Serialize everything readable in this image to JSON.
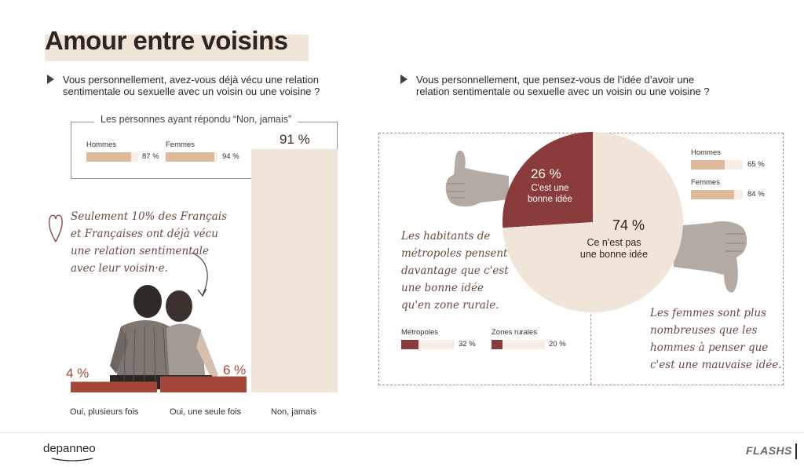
{
  "title": "Amour entre voisins",
  "colors": {
    "dark_red": "#8a3c3c",
    "sand": "#deb99a",
    "cream": "#f1e4d8",
    "accent": "#a4493a"
  },
  "left": {
    "question": "Vous personnellement, avez-vous déjà vécu une relation\nsentimentale ou sexuelle avec un voisin ou une voisine ?",
    "legend_title": "Les personnes ayant répondu “Non, jamais”",
    "hommes": {
      "label": "Hommes",
      "value": 87,
      "text": "87 %"
    },
    "femmes": {
      "label": "Femmes",
      "value": 94,
      "text": "94 %"
    },
    "annotation": "Seulement 10% des Français\net Françaises ont déjà vécu\nune relation sentimentale\navec leur voisin·e."
  },
  "right": {
    "question": "Vous personnellement, que pensez-vous de l’idée d’avoir une\nrelation sentimentale ou sexuelle avec un voisin ou une voisine ?",
    "slice_good": {
      "pct": "26 %",
      "label": "C'est une\nbonne idée"
    },
    "slice_bad": {
      "pct": "74 %",
      "label": "Ce n'est pas\nune bonne idée"
    },
    "hommes": {
      "label": "Hommes",
      "value": 65,
      "text": "65 %"
    },
    "femmes": {
      "label": "Femmes",
      "value": 84,
      "text": "84 %"
    },
    "annotation_left": "Les habitants de\nmétropoles pensent\ndavantage que c'est\nune bonne idée\nqu'en zone rurale.",
    "annotation_right": "Les femmes sont plus\nnombreuses que les\nhommes à penser que\nc'est une mauvaise idée.",
    "metropoles": {
      "label": "Métropoles",
      "value": 32,
      "text": "32 %"
    },
    "rurales": {
      "label": "Zones rurales",
      "value": 20,
      "text": "20 %"
    }
  },
  "chart_data": [
    {
      "type": "bar",
      "categories": [
        "Oui, plusieurs fois",
        "Oui, une seule fois",
        "Non, jamais"
      ],
      "values": [
        4,
        6,
        91
      ],
      "labels": [
        "4 %",
        "6 %",
        "91 %"
      ],
      "ylim": [
        0,
        100
      ]
    },
    {
      "type": "pie",
      "categories": [
        "C'est une bonne idée",
        "Ce n'est pas une bonne idée"
      ],
      "values": [
        26,
        74
      ]
    }
  ],
  "footer": {
    "brand": "depanneo",
    "logo": "FLASHS"
  }
}
